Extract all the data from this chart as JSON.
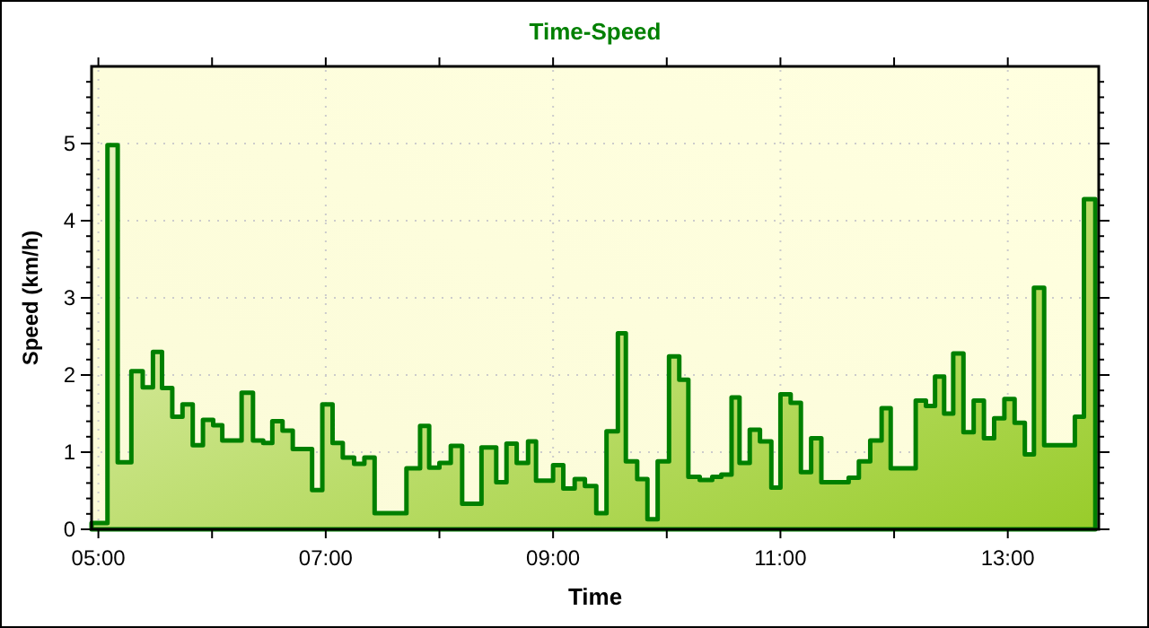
{
  "chart_data": {
    "type": "area",
    "title": "Time-Speed",
    "xlabel": "Time",
    "ylabel": "Speed (km/h)",
    "xlim": [
      4.94,
      13.8
    ],
    "xticks": [
      {
        "value": 5,
        "label": "05:00"
      },
      {
        "value": 6,
        "label": null
      },
      {
        "value": 7,
        "label": "07:00"
      },
      {
        "value": 8,
        "label": null
      },
      {
        "value": 9,
        "label": "09:00"
      },
      {
        "value": 10,
        "label": null
      },
      {
        "value": 11,
        "label": "11:00"
      },
      {
        "value": 12,
        "label": null
      },
      {
        "value": 13,
        "label": "13:00"
      }
    ],
    "ylim": [
      0,
      6
    ],
    "yticks": [
      0,
      {
        "value": 0.2,
        "label": null
      },
      {
        "value": 0.4,
        "label": null
      },
      {
        "value": 0.6,
        "label": null
      },
      {
        "value": 0.8,
        "label": null
      },
      1,
      {
        "value": 1.2,
        "label": null
      },
      {
        "value": 1.4,
        "label": null
      },
      {
        "value": 1.6,
        "label": null
      },
      {
        "value": 1.8,
        "label": null
      },
      2,
      {
        "value": 2.2,
        "label": null
      },
      {
        "value": 2.4,
        "label": null
      },
      {
        "value": 2.6,
        "label": null
      },
      {
        "value": 2.8,
        "label": null
      },
      3,
      {
        "value": 3.2,
        "label": null
      },
      {
        "value": 3.4,
        "label": null
      },
      {
        "value": 3.6,
        "label": null
      },
      {
        "value": 3.8,
        "label": null
      },
      4,
      {
        "value": 4.2,
        "label": null
      },
      {
        "value": 4.4,
        "label": null
      },
      {
        "value": 4.6,
        "label": null
      },
      {
        "value": 4.8,
        "label": null
      },
      5,
      {
        "value": 5.2,
        "label": null
      },
      {
        "value": 5.4,
        "label": null
      },
      {
        "value": 5.6,
        "label": null
      },
      {
        "value": 5.8,
        "label": null
      }
    ],
    "grid": true,
    "series": [
      {
        "color": "#008000",
        "x": [
          4.94,
          5.08,
          5.17,
          5.29,
          5.39,
          5.48,
          5.56,
          5.65,
          5.74,
          5.83,
          5.92,
          6.01,
          6.09,
          6.26,
          6.36,
          6.45,
          6.53,
          6.62,
          6.71,
          6.88,
          6.97,
          7.06,
          7.15,
          7.25,
          7.34,
          7.43,
          7.71,
          7.83,
          7.91,
          8.0,
          8.1,
          8.2,
          8.37,
          8.5,
          8.59,
          8.68,
          8.78,
          8.85,
          9.0,
          9.09,
          9.19,
          9.28,
          9.38,
          9.47,
          9.57,
          9.64,
          9.74,
          9.83,
          9.92,
          10.02,
          10.11,
          10.19,
          10.29,
          10.4,
          10.48,
          10.57,
          10.64,
          10.73,
          10.82,
          10.92,
          11.0,
          11.09,
          11.18,
          11.27,
          11.36,
          11.6,
          11.69,
          11.79,
          11.89,
          11.97,
          12.19,
          12.28,
          12.36,
          12.44,
          12.52,
          12.61,
          12.7,
          12.79,
          12.88,
          12.97,
          13.06,
          13.15,
          13.23,
          13.32,
          13.59,
          13.67,
          13.77
        ],
        "values": [
          0.08,
          4.98,
          0.87,
          2.05,
          1.84,
          2.3,
          1.83,
          1.46,
          1.62,
          1.09,
          1.42,
          1.35,
          1.15,
          1.77,
          1.15,
          1.12,
          1.4,
          1.28,
          1.04,
          0.51,
          1.62,
          1.12,
          0.93,
          0.85,
          0.93,
          0.21,
          0.79,
          1.34,
          0.8,
          0.86,
          1.08,
          0.33,
          1.06,
          0.61,
          1.11,
          0.86,
          1.14,
          0.63,
          0.83,
          0.53,
          0.65,
          0.56,
          0.21,
          1.27,
          2.54,
          0.88,
          0.65,
          0.13,
          0.88,
          2.24,
          1.94,
          0.68,
          0.64,
          0.68,
          0.71,
          1.71,
          0.86,
          1.29,
          1.14,
          0.54,
          1.75,
          1.64,
          0.74,
          1.18,
          0.61,
          0.67,
          0.88,
          1.15,
          1.57,
          0.79,
          1.67,
          1.6,
          1.98,
          1.5,
          2.28,
          1.26,
          1.67,
          1.18,
          1.44,
          1.69,
          1.38,
          0.97,
          3.13,
          1.09,
          1.46,
          4.28,
          4.28
        ]
      }
    ]
  }
}
